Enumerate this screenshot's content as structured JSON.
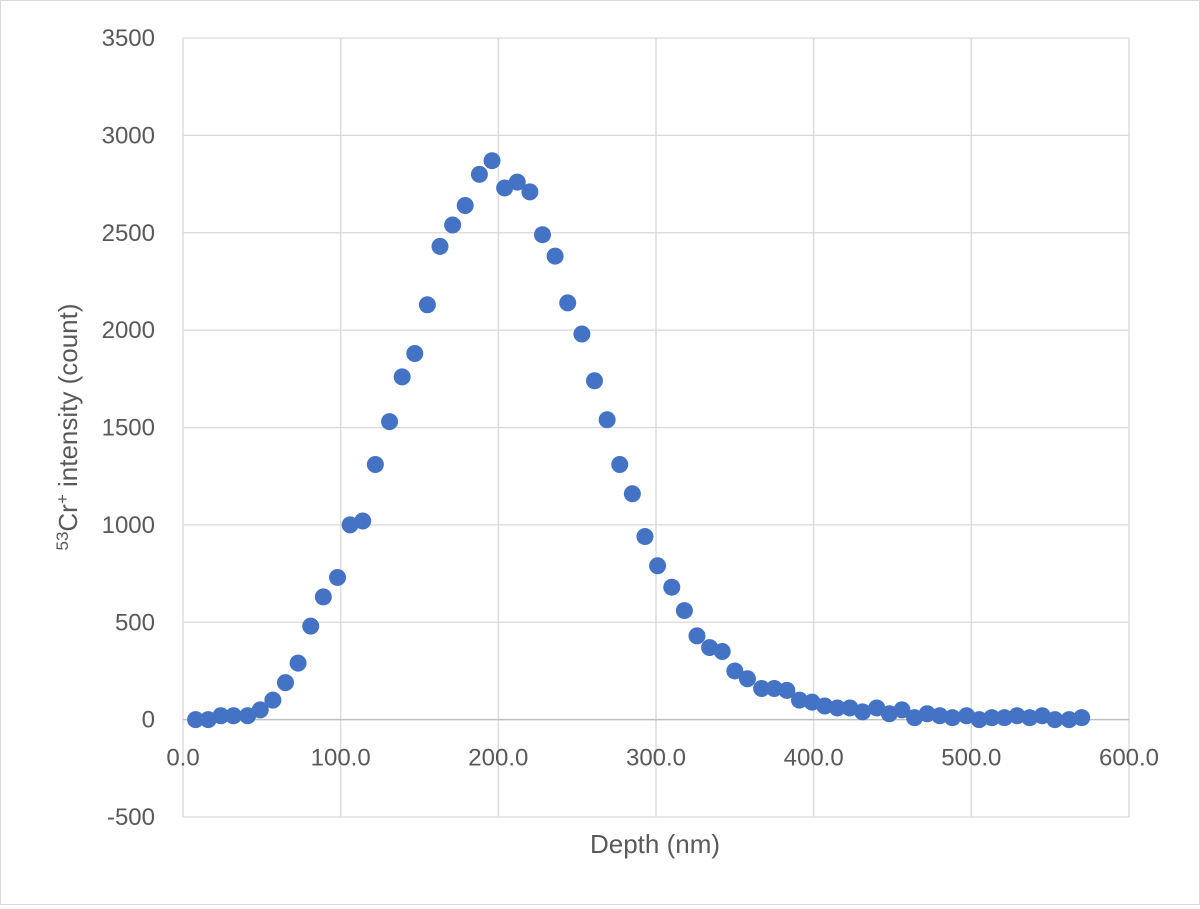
{
  "chart_data": {
    "type": "scatter",
    "title": "",
    "xlabel": "Depth (nm)",
    "ylabel": {
      "prefix_sup": "53",
      "element": "Cr",
      "charge_sup": "+",
      "suffix": " intensity (count)"
    },
    "xlim": [
      0,
      600
    ],
    "ylim": [
      -500,
      3500
    ],
    "xticks": [
      0,
      100,
      200,
      300,
      400,
      500,
      600
    ],
    "xtick_labels": [
      "0.0",
      "100.0",
      "200.0",
      "300.0",
      "400.0",
      "500.0",
      "600.0"
    ],
    "yticks": [
      -500,
      0,
      500,
      1000,
      1500,
      2000,
      2500,
      3000,
      3500
    ],
    "ytick_labels": [
      "-500",
      "0",
      "500",
      "1000",
      "1500",
      "2000",
      "2500",
      "3000",
      "3500"
    ],
    "grid": true,
    "legend": "none",
    "marker_color": "#4472c4",
    "series": [
      {
        "x": [
          8,
          16,
          24,
          32,
          41,
          49,
          57,
          65,
          73,
          81,
          89,
          98,
          106,
          114,
          122,
          131,
          139,
          147,
          155,
          163,
          171,
          179,
          188,
          196,
          204,
          212,
          220,
          228,
          236,
          244,
          253,
          261,
          269,
          277,
          285,
          293,
          301,
          310,
          318,
          326,
          334,
          342,
          350,
          358,
          367,
          375,
          383,
          391,
          399,
          407,
          415,
          423,
          431,
          440,
          448,
          456,
          464,
          472,
          480,
          488,
          497,
          505,
          513,
          521,
          529,
          537,
          545,
          553,
          562,
          570
        ],
        "y": [
          0,
          0,
          20,
          20,
          20,
          50,
          100,
          190,
          290,
          480,
          630,
          730,
          1000,
          1020,
          1310,
          1530,
          1760,
          1880,
          2130,
          2430,
          2540,
          2640,
          2800,
          2870,
          2730,
          2760,
          2710,
          2490,
          2380,
          2140,
          1980,
          1740,
          1540,
          1310,
          1160,
          940,
          790,
          680,
          560,
          430,
          370,
          350,
          250,
          210,
          160,
          160,
          150,
          100,
          90,
          70,
          60,
          60,
          40,
          60,
          30,
          50,
          10,
          30,
          20,
          10,
          20,
          0,
          10,
          10,
          20,
          10,
          20,
          0,
          0,
          10
        ]
      }
    ]
  }
}
